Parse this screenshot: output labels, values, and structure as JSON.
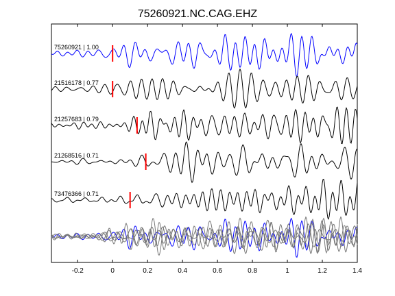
{
  "chart_data": {
    "type": "line",
    "title": "75260921.NC.CAG.EHZ",
    "xlabel": "",
    "ylabel": "",
    "xlim": [
      -0.35,
      1.4
    ],
    "grid": false,
    "x_ticks": [
      "-0.2",
      "0",
      "0.2",
      "0.4",
      "0.6",
      "0.8",
      "1",
      "1.2",
      "1.4"
    ],
    "x_tick_values": [
      -0.2,
      0,
      0.2,
      0.4,
      0.6,
      0.8,
      1.0,
      1.2,
      1.4
    ],
    "colors": {
      "reference": "#0000ff",
      "trace": "#000000",
      "overlay": "#777777",
      "pick": "#ff0000"
    },
    "traces": [
      {
        "label": "75260921 | 1.00",
        "pick": 0.0,
        "color": "#0000ff",
        "seed": 1
      },
      {
        "label": "21516178 | 0.77",
        "pick": 0.0,
        "color": "#000000",
        "seed": 2
      },
      {
        "label": "21257683 | 0.79",
        "pick": 0.14,
        "color": "#000000",
        "seed": 3
      },
      {
        "label": "21268516 | 0.71",
        "pick": 0.19,
        "color": "#000000",
        "seed": 4
      },
      {
        "label": "73476366 | 0.71",
        "pick": 0.1,
        "color": "#000000",
        "seed": 5
      }
    ]
  }
}
